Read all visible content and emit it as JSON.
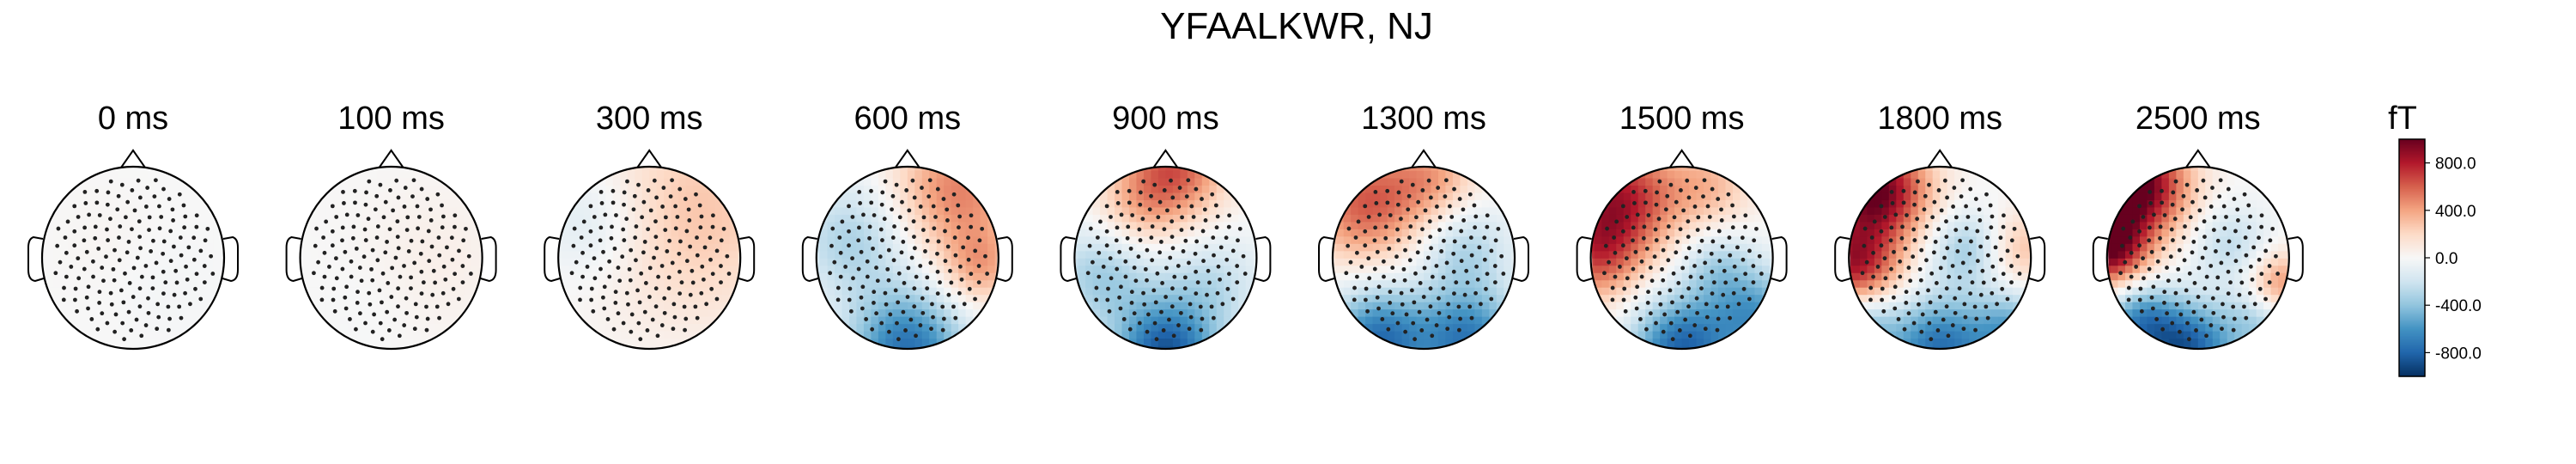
{
  "chart_data": {
    "type": "heatmap",
    "title": "YFAALKWR, NJ",
    "times_ms": [
      0,
      100,
      300,
      600,
      900,
      1300,
      1500,
      1800,
      2500
    ],
    "time_labels": [
      "0 ms",
      "100 ms",
      "300 ms",
      "600 ms",
      "900 ms",
      "1300 ms",
      "1500 ms",
      "1800 ms",
      "2500 ms"
    ],
    "unit": "fT",
    "colorbar": {
      "range": [
        -1000,
        1000
      ],
      "ticks": [
        800,
        400,
        0,
        -400,
        -800
      ],
      "tick_labels": [
        "800.0",
        "400.0",
        "0.0",
        "-400.0",
        "-800.0"
      ],
      "colormap": [
        "#053061",
        "#2166ac",
        "#4393c3",
        "#92c5de",
        "#d1e5f0",
        "#f7f7f7",
        "#fddbc7",
        "#f4a582",
        "#d6604d",
        "#b2182b",
        "#67001f"
      ]
    },
    "sensor_count": 160,
    "topomaps": [
      {
        "time_ms": 0,
        "sources": [
          [
            -0.3,
            0.2,
            20,
            0.4
          ],
          [
            0.4,
            -0.3,
            -20,
            0.4
          ]
        ]
      },
      {
        "time_ms": 100,
        "sources": [
          [
            0.5,
            0.0,
            60,
            0.6
          ],
          [
            -0.2,
            -0.5,
            -20,
            0.4
          ]
        ]
      },
      {
        "time_ms": 300,
        "sources": [
          [
            0.5,
            0.5,
            280,
            0.8
          ],
          [
            -0.6,
            0.4,
            -180,
            0.45
          ]
        ]
      },
      {
        "time_ms": 600,
        "sources": [
          [
            0.55,
            0.75,
            500,
            0.5
          ],
          [
            -0.6,
            0.2,
            -320,
            0.45
          ],
          [
            0.0,
            -1.0,
            -750,
            0.45
          ],
          [
            0.8,
            -0.1,
            350,
            0.3
          ]
        ]
      },
      {
        "time_ms": 900,
        "sources": [
          [
            0.1,
            1.0,
            600,
            0.4
          ],
          [
            0.0,
            -1.05,
            -850,
            0.4
          ],
          [
            -0.7,
            -0.2,
            -350,
            0.4
          ],
          [
            0.5,
            -0.3,
            -250,
            0.4
          ],
          [
            -0.3,
            0.55,
            250,
            0.35
          ]
        ]
      },
      {
        "time_ms": 1300,
        "sources": [
          [
            -0.65,
            0.6,
            600,
            0.45
          ],
          [
            0.1,
            0.9,
            350,
            0.35
          ],
          [
            -0.5,
            -0.9,
            -750,
            0.4
          ],
          [
            0.5,
            -0.9,
            -700,
            0.4
          ],
          [
            0.45,
            0.1,
            -300,
            0.35
          ]
        ]
      },
      {
        "time_ms": 1500,
        "sources": [
          [
            -0.7,
            0.65,
            800,
            0.45
          ],
          [
            -0.95,
            0.0,
            500,
            0.35
          ],
          [
            0.3,
            0.8,
            300,
            0.35
          ],
          [
            0.0,
            -1.0,
            -800,
            0.4
          ],
          [
            0.85,
            -0.65,
            -550,
            0.35
          ],
          [
            0.4,
            -0.1,
            -300,
            0.3
          ]
        ]
      },
      {
        "time_ms": 1800,
        "sources": [
          [
            -0.7,
            0.75,
            1000,
            0.4
          ],
          [
            -0.95,
            -0.1,
            800,
            0.35
          ],
          [
            0.9,
            0.1,
            300,
            0.3
          ],
          [
            -0.9,
            -0.75,
            -500,
            0.3
          ],
          [
            0.0,
            -1.0,
            -750,
            0.4
          ],
          [
            0.8,
            -0.8,
            -500,
            0.3
          ],
          [
            0.3,
            0.1,
            -350,
            0.3
          ]
        ]
      },
      {
        "time_ms": 2500,
        "sources": [
          [
            -0.7,
            0.8,
            1100,
            0.4
          ],
          [
            -1.0,
            0.1,
            950,
            0.3
          ],
          [
            0.9,
            -0.3,
            500,
            0.25
          ],
          [
            -0.65,
            -0.7,
            -600,
            0.3
          ],
          [
            -0.1,
            -1.0,
            -800,
            0.35
          ],
          [
            0.7,
            -0.7,
            -350,
            0.3
          ],
          [
            0.35,
            0.15,
            -250,
            0.3
          ]
        ]
      }
    ]
  }
}
